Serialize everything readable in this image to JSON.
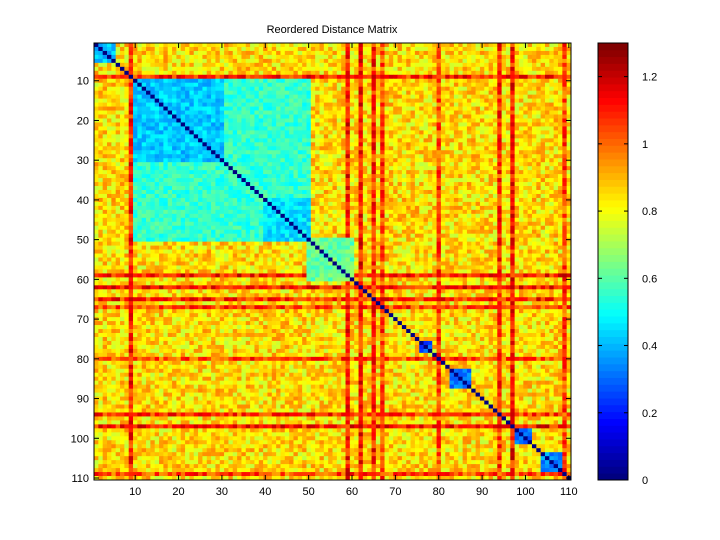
{
  "chart_data": {
    "type": "heatmap",
    "title": "Reordered Distance Matrix",
    "xlabel": "",
    "ylabel": "",
    "size": 110,
    "x_ticks": [
      10,
      20,
      30,
      40,
      50,
      60,
      70,
      80,
      90,
      100,
      110
    ],
    "y_ticks": [
      10,
      20,
      30,
      40,
      50,
      60,
      70,
      80,
      90,
      100,
      110
    ],
    "xlim": [
      0.5,
      110.5
    ],
    "ylim": [
      0.5,
      110.5
    ],
    "y_reversed": true,
    "colormap": "jet",
    "clim": [
      0,
      1.3
    ],
    "colorbar_ticks": [
      0,
      0.2,
      0.4,
      0.6,
      0.8,
      1,
      1.2
    ],
    "diagonal_value": 0,
    "background_value": 0.85,
    "clusters": [
      {
        "start": 1,
        "end": 5,
        "value": 0.42
      },
      {
        "start": 10,
        "end": 30,
        "value": 0.42
      },
      {
        "start": 10,
        "end": 50,
        "value": 0.55
      },
      {
        "start": 40,
        "end": 50,
        "value": 0.45
      },
      {
        "start": 50,
        "end": 60,
        "value": 0.62
      },
      {
        "start": 76,
        "end": 78,
        "value": 0.25
      },
      {
        "start": 83,
        "end": 87,
        "value": 0.3
      },
      {
        "start": 98,
        "end": 101,
        "value": 0.3
      },
      {
        "start": 104,
        "end": 108,
        "value": 0.35
      }
    ],
    "high_rows": [
      {
        "index": 9,
        "value": 1.1
      },
      {
        "index": 59,
        "value": 1.12
      },
      {
        "index": 62,
        "value": 1.12
      },
      {
        "index": 65,
        "value": 1.1
      },
      {
        "index": 67,
        "value": 1.05
      },
      {
        "index": 80,
        "value": 1.05
      },
      {
        "index": 94,
        "value": 1.08
      },
      {
        "index": 97,
        "value": 1.12
      },
      {
        "index": 109,
        "value": 1.05
      }
    ]
  }
}
